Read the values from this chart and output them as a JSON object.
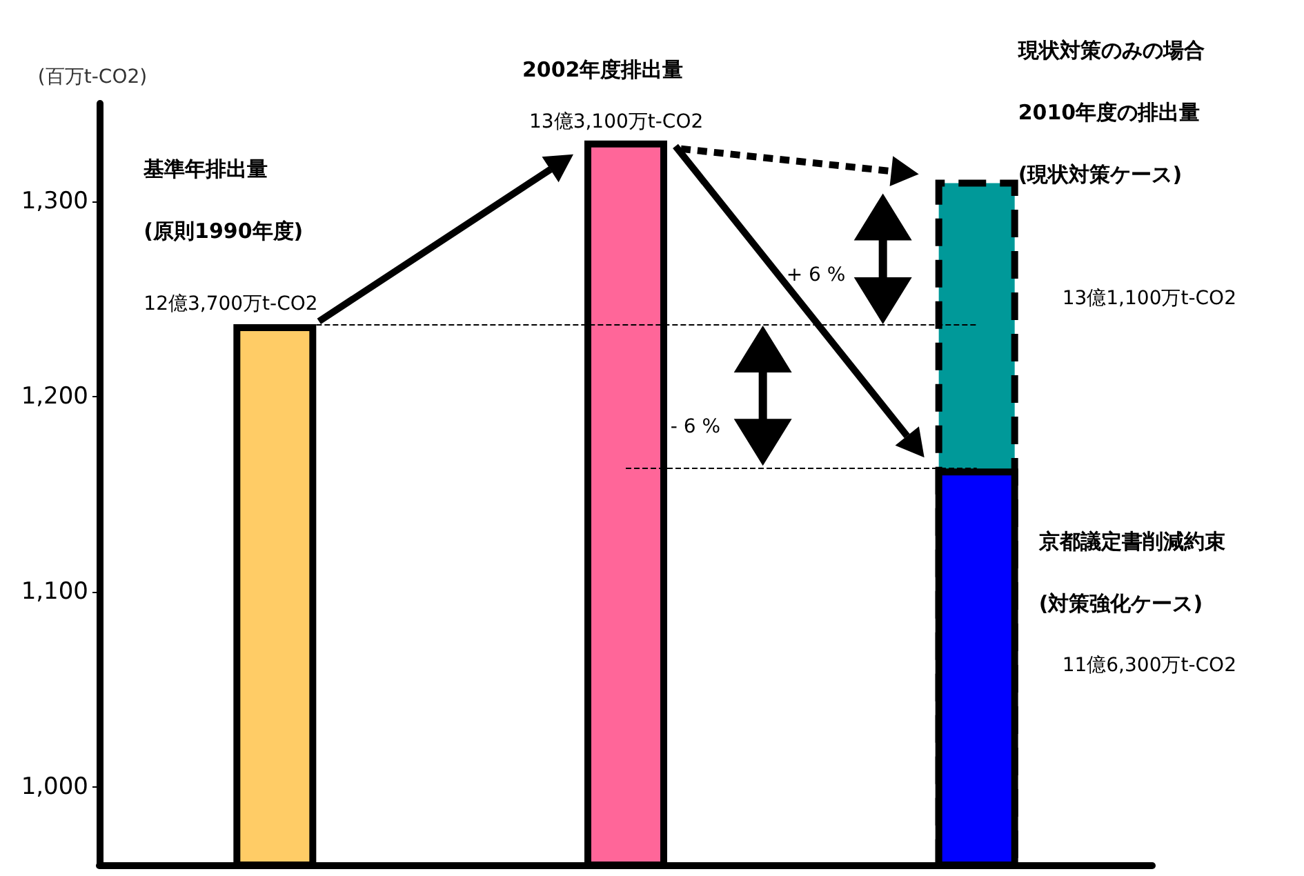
{
  "chart_data": {
    "type": "bar",
    "categories": [
      null,
      null,
      null
    ],
    "ylabel": "(百万t-CO2)",
    "grid": false,
    "series": [
      {
        "colors": [
          "#ffcc66",
          "#ff6699",
          "#0000ff"
        ],
        "values": [
          1237,
          1331,
          1163
        ]
      },
      {
        "color": "#009999",
        "values": [
          null,
          null,
          1311
        ],
        "line_style": "dashed"
      }
    ],
    "ylim": [
      960,
      1350
    ],
    "yticks": [
      {
        "value": 1000,
        "label": "1,000"
      },
      {
        "value": 1100,
        "label": "1,100"
      },
      {
        "value": 1200,
        "label": "1,200"
      },
      {
        "value": 1300,
        "label": "1,300"
      }
    ],
    "ref_lines": [
      {
        "axis": "y",
        "value": 1237,
        "line_style": "dashed",
        "color": "#000000"
      },
      {
        "axis": "y",
        "value": 1163,
        "line_style": "dashed",
        "color": "#000000"
      }
    ],
    "annotations": [
      "基準年排出量\n(原則1990年度)",
      "12億3,700万t-CO2",
      "2002年度排出量",
      "13億3,100万t-CO2",
      "現状対策のみの場合\n2010年度の排出量\n(現状対策ケース)",
      "13億1,100万t-CO2",
      "京都議定書削減約束\n(対策強化ケース)",
      "11億6,300万t-CO2",
      "+ 6 %",
      "- 6 %"
    ]
  }
}
